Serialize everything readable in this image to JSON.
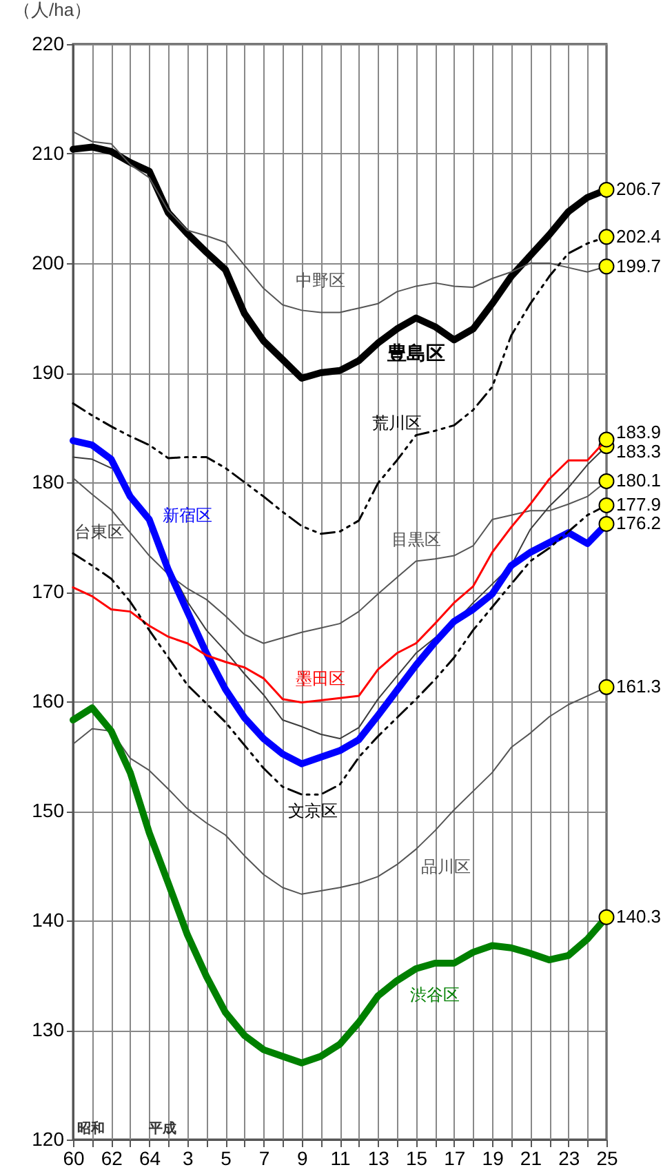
{
  "chart_data": {
    "type": "line",
    "ylabel": "（人/ha）",
    "categories": [
      "60",
      null,
      "62",
      null,
      "64",
      null,
      "3",
      null,
      "5",
      null,
      "7",
      null,
      "9",
      null,
      "11",
      null,
      "13",
      null,
      "15",
      null,
      "17",
      null,
      "19",
      null,
      "21",
      null,
      "23",
      null,
      "25"
    ],
    "ylim": [
      120,
      220
    ],
    "yticks": [
      120,
      130,
      140,
      150,
      160,
      170,
      180,
      190,
      200,
      210,
      220
    ],
    "grid": true,
    "annotations": [
      "昭和",
      "平成"
    ],
    "series": [
      {
        "name": "豊島区",
        "color": "#000000",
        "line_style": "solid",
        "values": [
          210.4,
          210.6,
          210.2,
          209.2,
          208.4,
          204.6,
          202.7,
          201.0,
          199.4,
          195.4,
          192.9,
          191.2,
          189.5,
          190.0,
          190.2,
          191.1,
          192.7,
          194.0,
          195.0,
          194.2,
          193.0,
          194.0,
          196.3,
          198.8,
          200.7,
          202.6,
          204.7,
          206.0,
          206.7
        ],
        "value_labels": [
          null,
          null,
          null,
          null,
          null,
          null,
          null,
          null,
          null,
          null,
          null,
          null,
          null,
          null,
          null,
          null,
          null,
          null,
          null,
          null,
          null,
          null,
          null,
          null,
          null,
          null,
          null,
          null,
          "206.7"
        ]
      },
      {
        "name": "中野区",
        "color": "#555555",
        "line_style": "solid",
        "values": [
          212.0,
          211.1,
          210.9,
          209.0,
          207.8,
          204.8,
          203.0,
          202.5,
          201.9,
          199.8,
          197.7,
          196.2,
          195.7,
          195.5,
          195.5,
          195.9,
          196.3,
          197.4,
          197.9,
          198.2,
          197.9,
          197.8,
          198.6,
          199.2,
          200.0,
          200.0,
          199.6,
          199.2,
          199.7
        ],
        "value_labels": [
          null,
          null,
          null,
          null,
          null,
          null,
          null,
          null,
          null,
          null,
          null,
          null,
          null,
          null,
          null,
          null,
          null,
          null,
          null,
          null,
          null,
          null,
          null,
          null,
          null,
          null,
          null,
          null,
          "199.7"
        ]
      },
      {
        "name": "荒川区",
        "color": "#000000",
        "line_style": "dashed",
        "values": [
          187.2,
          186.1,
          185.1,
          184.2,
          183.4,
          182.2,
          182.3,
          182.3,
          181.3,
          180.0,
          178.7,
          177.3,
          176.0,
          175.3,
          175.5,
          176.5,
          179.9,
          182.0,
          184.3,
          184.7,
          185.2,
          186.6,
          188.7,
          193.4,
          196.3,
          198.8,
          200.9,
          201.8,
          202.4
        ],
        "value_labels": [
          null,
          null,
          null,
          null,
          null,
          null,
          null,
          null,
          null,
          null,
          null,
          null,
          null,
          null,
          null,
          null,
          null,
          null,
          null,
          null,
          null,
          null,
          null,
          null,
          null,
          null,
          null,
          null,
          "202.4"
        ]
      },
      {
        "name": "目黒区",
        "color": "#555555",
        "line_style": "solid",
        "values": [
          180.4,
          178.9,
          177.5,
          175.4,
          173.3,
          171.6,
          170.3,
          169.3,
          167.8,
          166.1,
          165.3,
          165.8,
          166.3,
          166.7,
          167.1,
          168.2,
          169.8,
          171.3,
          172.8,
          173.0,
          173.3,
          174.2,
          176.6,
          177.0,
          177.4,
          177.4,
          178.0,
          178.7,
          180.1
        ],
        "value_labels": [
          null,
          null,
          null,
          null,
          null,
          null,
          null,
          null,
          null,
          null,
          null,
          null,
          null,
          null,
          null,
          null,
          null,
          null,
          null,
          null,
          null,
          null,
          null,
          null,
          null,
          null,
          null,
          null,
          "180.1"
        ]
      },
      {
        "name": "台東区",
        "color": "#3c3c3c",
        "line_style": "solid",
        "values": [
          182.3,
          182.1,
          181.3,
          null,
          null,
          172.4,
          169.1,
          166.5,
          164.6,
          162.5,
          160.6,
          158.3,
          157.7,
          157.0,
          156.6,
          157.6,
          160.2,
          162.3,
          164.4,
          165.8,
          167.1,
          169.0,
          170.7,
          172.4,
          175.7,
          177.8,
          179.5,
          181.6,
          183.3
        ],
        "value_labels": [
          null,
          null,
          null,
          null,
          null,
          null,
          null,
          null,
          null,
          null,
          null,
          null,
          null,
          null,
          null,
          null,
          null,
          null,
          null,
          null,
          null,
          null,
          null,
          null,
          null,
          null,
          null,
          null,
          "183.3"
        ]
      },
      {
        "name": "新宿区",
        "color": "#0000ff",
        "line_style": "solid",
        "values": [
          183.8,
          183.4,
          182.1,
          178.7,
          176.6,
          172.0,
          168.2,
          164.4,
          161.1,
          158.5,
          156.6,
          155.2,
          154.3,
          154.9,
          155.5,
          156.5,
          158.7,
          161.0,
          163.3,
          165.4,
          167.3,
          168.4,
          169.8,
          172.4,
          173.6,
          174.5,
          175.4,
          174.4,
          176.2
        ],
        "value_labels": [
          null,
          null,
          null,
          null,
          null,
          null,
          null,
          null,
          null,
          null,
          null,
          null,
          null,
          null,
          null,
          null,
          null,
          null,
          null,
          null,
          null,
          null,
          null,
          null,
          null,
          null,
          null,
          null,
          "176.2"
        ]
      },
      {
        "name": "墨田区",
        "color": "#ff0000",
        "line_style": "solid",
        "values": [
          170.4,
          169.6,
          168.4,
          168.2,
          166.9,
          165.9,
          165.3,
          164.2,
          163.6,
          163.1,
          162.1,
          160.2,
          159.9,
          160.1,
          160.3,
          160.5,
          162.9,
          164.4,
          165.3,
          167.1,
          169.0,
          170.5,
          173.6,
          175.9,
          178.0,
          180.3,
          182.0,
          182.0,
          183.9
        ],
        "value_labels": [
          null,
          null,
          null,
          null,
          null,
          null,
          null,
          null,
          null,
          null,
          null,
          null,
          null,
          null,
          null,
          null,
          null,
          null,
          null,
          null,
          null,
          null,
          null,
          null,
          null,
          null,
          null,
          null,
          "183.9"
        ]
      },
      {
        "name": "文京区",
        "color": "#000000",
        "line_style": "dashed",
        "values": [
          173.5,
          172.4,
          171.2,
          169.1,
          166.5,
          164.0,
          161.5,
          159.8,
          158.1,
          156.0,
          153.9,
          152.2,
          151.5,
          151.5,
          152.4,
          154.9,
          156.8,
          158.5,
          160.2,
          162.0,
          164.0,
          166.5,
          168.6,
          170.7,
          172.8,
          174.0,
          175.5,
          177.0,
          177.9
        ],
        "value_labels": [
          null,
          null,
          null,
          null,
          null,
          null,
          null,
          null,
          null,
          null,
          null,
          null,
          null,
          null,
          null,
          null,
          null,
          null,
          null,
          null,
          null,
          null,
          null,
          null,
          null,
          null,
          null,
          null,
          "177.9"
        ]
      },
      {
        "name": "品川区",
        "color": "#555555",
        "line_style": "solid",
        "values": [
          156.1,
          157.5,
          157.3,
          154.8,
          153.7,
          152.0,
          150.2,
          148.9,
          147.8,
          145.9,
          144.2,
          143.0,
          142.4,
          142.7,
          143.0,
          143.4,
          144.0,
          145.1,
          146.5,
          148.2,
          150.1,
          151.8,
          153.5,
          155.8,
          157.1,
          158.6,
          159.7,
          160.5,
          161.3
        ],
        "value_labels": [
          null,
          null,
          null,
          null,
          null,
          null,
          null,
          null,
          null,
          null,
          null,
          null,
          null,
          null,
          null,
          null,
          null,
          null,
          null,
          null,
          null,
          null,
          null,
          null,
          null,
          null,
          null,
          null,
          "161.3"
        ]
      },
      {
        "name": "渋谷区",
        "color": "#008000",
        "line_style": "solid",
        "values": [
          158.3,
          159.4,
          157.3,
          153.5,
          148.0,
          143.4,
          138.7,
          134.9,
          131.6,
          129.5,
          128.2,
          127.6,
          127.0,
          127.6,
          128.7,
          130.7,
          133.1,
          134.5,
          135.6,
          136.1,
          136.1,
          137.1,
          137.7,
          137.5,
          137.0,
          136.4,
          136.8,
          138.3,
          140.3
        ],
        "value_labels": [
          null,
          null,
          null,
          null,
          null,
          null,
          null,
          null,
          null,
          null,
          null,
          null,
          null,
          null,
          null,
          null,
          null,
          null,
          null,
          null,
          null,
          null,
          null,
          null,
          null,
          null,
          null,
          null,
          "140.3"
        ]
      }
    ]
  }
}
